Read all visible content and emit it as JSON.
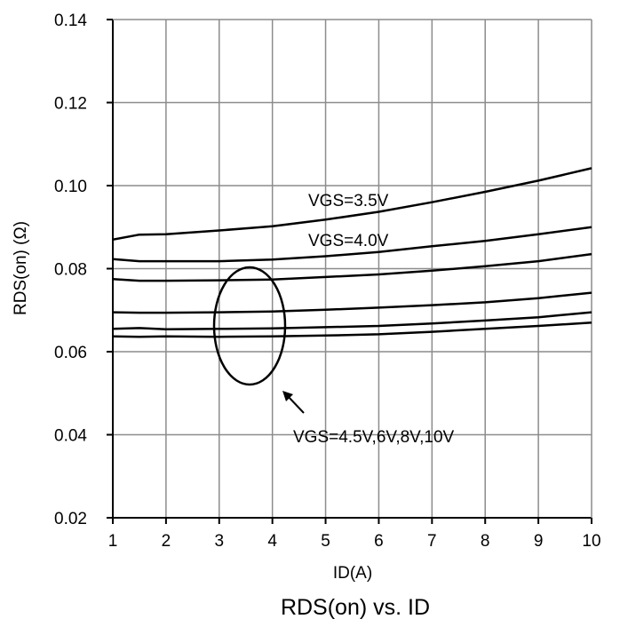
{
  "chart_data": {
    "type": "line",
    "title": "RDS(on) vs. ID",
    "xlabel": "ID(A)",
    "ylabel": "RDS(on) (Ω)",
    "xlim": [
      1,
      10
    ],
    "ylim": [
      0.02,
      0.14
    ],
    "xticks": [
      1,
      2,
      3,
      4,
      5,
      6,
      7,
      8,
      9,
      10
    ],
    "yticks": [
      "0.02",
      "0.04",
      "0.06",
      "0.08",
      "0.10",
      "0.12",
      "0.14"
    ],
    "grid": true,
    "series": [
      {
        "name": "VGS=3.5V",
        "x": [
          1,
          1.5,
          2,
          3,
          4,
          5,
          6,
          7,
          8,
          9,
          10
        ],
        "y": [
          0.087,
          0.0882,
          0.0883,
          0.0892,
          0.0902,
          0.0918,
          0.0937,
          0.096,
          0.0985,
          0.1012,
          0.1042
        ]
      },
      {
        "name": "VGS=4.0V",
        "x": [
          1,
          1.5,
          2,
          3,
          4,
          5,
          6,
          7,
          8,
          9,
          10
        ],
        "y": [
          0.0823,
          0.0818,
          0.0818,
          0.0818,
          0.0822,
          0.083,
          0.084,
          0.0854,
          0.0867,
          0.0883,
          0.09
        ]
      },
      {
        "name": "VGS=4.5V",
        "x": [
          1,
          1.5,
          2,
          3,
          4,
          5,
          6,
          7,
          8,
          9,
          10
        ],
        "y": [
          0.0775,
          0.0771,
          0.0771,
          0.0772,
          0.0774,
          0.078,
          0.0786,
          0.0795,
          0.0806,
          0.0818,
          0.0835
        ]
      },
      {
        "name": "VGS=6V",
        "x": [
          1,
          1.5,
          2,
          3,
          4,
          5,
          6,
          7,
          8,
          9,
          10
        ],
        "y": [
          0.0695,
          0.0694,
          0.0694,
          0.0695,
          0.0697,
          0.0701,
          0.0706,
          0.0712,
          0.0719,
          0.0729,
          0.0742
        ]
      },
      {
        "name": "VGS=8V",
        "x": [
          1,
          1.5,
          2,
          3,
          4,
          5,
          6,
          7,
          8,
          9,
          10
        ],
        "y": [
          0.0655,
          0.0657,
          0.0654,
          0.0655,
          0.0656,
          0.0659,
          0.0662,
          0.0668,
          0.0675,
          0.0683,
          0.0695
        ]
      },
      {
        "name": "VGS=10V",
        "x": [
          1,
          1.5,
          2,
          3,
          4,
          5,
          6,
          7,
          8,
          9,
          10
        ],
        "y": [
          0.0637,
          0.0636,
          0.0637,
          0.0636,
          0.0637,
          0.0639,
          0.0642,
          0.0648,
          0.0655,
          0.0662,
          0.067
        ]
      }
    ],
    "annotations": [
      {
        "text": "VGS=3.5V",
        "series": "VGS=3.5V"
      },
      {
        "text": "VGS=4.0V",
        "series": "VGS=4.0V"
      },
      {
        "text": "VGS=4.5V,6V,8V,10V",
        "series": "VGS=4.5V,6V,8V,10V"
      }
    ]
  }
}
